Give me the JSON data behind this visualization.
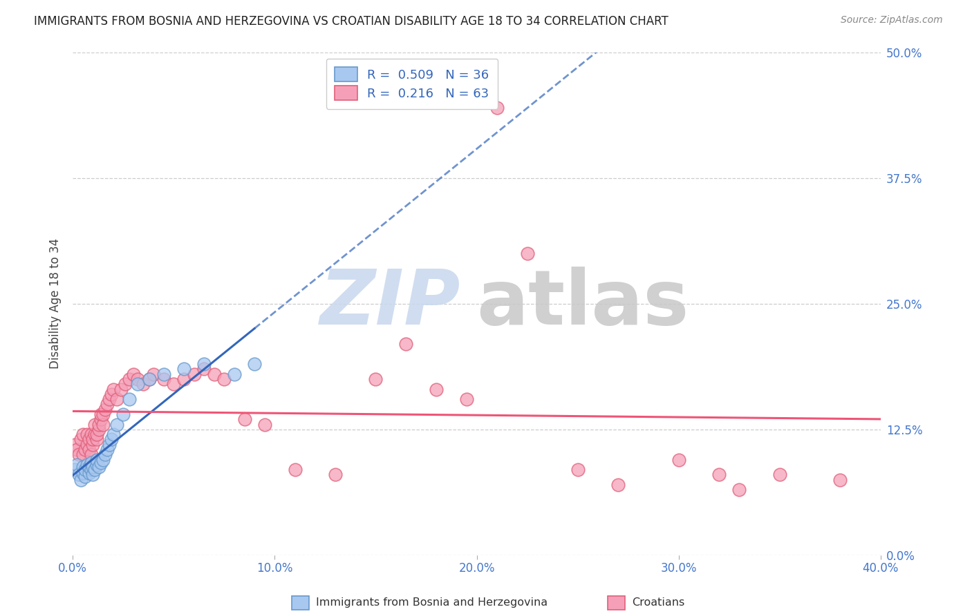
{
  "title": "IMMIGRANTS FROM BOSNIA AND HERZEGOVINA VS CROATIAN DISABILITY AGE 18 TO 34 CORRELATION CHART",
  "source": "Source: ZipAtlas.com",
  "ylabel": "Disability Age 18 to 34",
  "xlim": [
    0.0,
    0.4
  ],
  "ylim": [
    0.0,
    0.5
  ],
  "xlabel_tick_vals": [
    0.0,
    0.1,
    0.2,
    0.3,
    0.4
  ],
  "xlabel_tick_labels": [
    "0.0%",
    "10.0%",
    "20.0%",
    "30.0%",
    "40.0%"
  ],
  "ylabel_tick_vals": [
    0.0,
    0.125,
    0.25,
    0.375,
    0.5
  ],
  "ylabel_tick_labels": [
    "0.0%",
    "12.5%",
    "25.0%",
    "37.5%",
    "50.0%"
  ],
  "bosnia_color": "#a8c8f0",
  "bosnia_edge_color": "#6699cc",
  "croatian_color": "#f5a0b8",
  "croatian_edge_color": "#e0607a",
  "bosnia_line_color": "#3366bb",
  "croatian_line_color": "#ee5577",
  "bosnia_R": 0.509,
  "bosnia_N": 36,
  "croatian_R": 0.216,
  "croatian_N": 63,
  "watermark_zip_color": "#c8d8ee",
  "watermark_atlas_color": "#c8c8c8",
  "bosnia_x": [
    0.001,
    0.002,
    0.003,
    0.004,
    0.005,
    0.005,
    0.006,
    0.006,
    0.007,
    0.008,
    0.008,
    0.009,
    0.009,
    0.01,
    0.01,
    0.011,
    0.012,
    0.012,
    0.013,
    0.014,
    0.015,
    0.016,
    0.017,
    0.018,
    0.019,
    0.02,
    0.022,
    0.025,
    0.028,
    0.032,
    0.038,
    0.045,
    0.055,
    0.065,
    0.08,
    0.09
  ],
  "bosnia_y": [
    0.085,
    0.09,
    0.08,
    0.075,
    0.082,
    0.088,
    0.078,
    0.085,
    0.09,
    0.082,
    0.088,
    0.085,
    0.092,
    0.08,
    0.088,
    0.085,
    0.09,
    0.095,
    0.088,
    0.092,
    0.095,
    0.1,
    0.105,
    0.11,
    0.115,
    0.12,
    0.13,
    0.14,
    0.155,
    0.17,
    0.175,
    0.18,
    0.185,
    0.19,
    0.18,
    0.19
  ],
  "croatian_x": [
    0.001,
    0.002,
    0.003,
    0.004,
    0.005,
    0.005,
    0.006,
    0.007,
    0.007,
    0.008,
    0.008,
    0.009,
    0.009,
    0.01,
    0.01,
    0.011,
    0.011,
    0.012,
    0.012,
    0.013,
    0.013,
    0.014,
    0.014,
    0.015,
    0.015,
    0.016,
    0.017,
    0.018,
    0.019,
    0.02,
    0.022,
    0.024,
    0.026,
    0.028,
    0.03,
    0.032,
    0.035,
    0.038,
    0.04,
    0.045,
    0.05,
    0.055,
    0.06,
    0.065,
    0.07,
    0.075,
    0.085,
    0.095,
    0.11,
    0.13,
    0.15,
    0.165,
    0.18,
    0.195,
    0.21,
    0.225,
    0.25,
    0.27,
    0.3,
    0.32,
    0.33,
    0.35,
    0.38
  ],
  "croatian_y": [
    0.11,
    0.105,
    0.1,
    0.115,
    0.1,
    0.12,
    0.105,
    0.11,
    0.12,
    0.105,
    0.115,
    0.12,
    0.1,
    0.11,
    0.115,
    0.12,
    0.13,
    0.115,
    0.12,
    0.125,
    0.13,
    0.135,
    0.14,
    0.13,
    0.14,
    0.145,
    0.15,
    0.155,
    0.16,
    0.165,
    0.155,
    0.165,
    0.17,
    0.175,
    0.18,
    0.175,
    0.17,
    0.175,
    0.18,
    0.175,
    0.17,
    0.175,
    0.18,
    0.185,
    0.18,
    0.175,
    0.135,
    0.13,
    0.085,
    0.08,
    0.175,
    0.21,
    0.165,
    0.155,
    0.445,
    0.3,
    0.085,
    0.07,
    0.095,
    0.08,
    0.065,
    0.08,
    0.075
  ]
}
